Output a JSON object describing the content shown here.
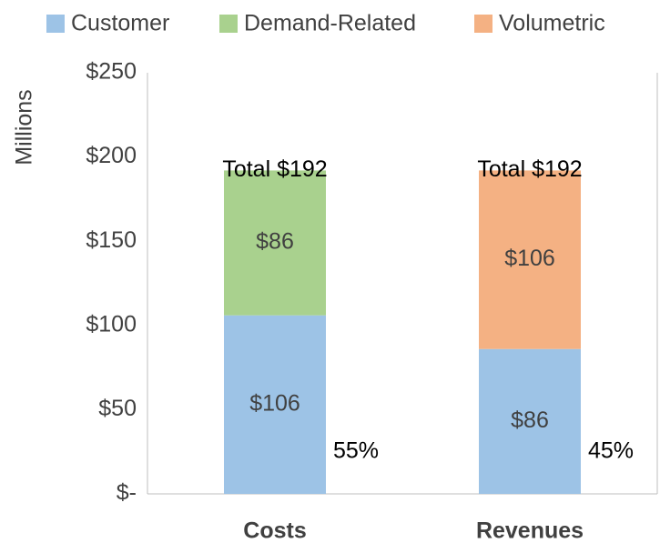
{
  "chart_data": {
    "type": "stacked_bar",
    "y_axis_label": "Millions",
    "categories": [
      "Costs",
      "Revenues"
    ],
    "series": [
      {
        "name": "Customer",
        "color": "#9dc3e6",
        "values": [
          106,
          86
        ],
        "value_labels": [
          "$106",
          "$86"
        ]
      },
      {
        "name": "Demand-Related",
        "color": "#a9d18e",
        "values": [
          86,
          null
        ],
        "value_labels": [
          "$86",
          null
        ]
      },
      {
        "name": "Volumetric",
        "color": "#f4b183",
        "values": [
          null,
          106
        ],
        "value_labels": [
          null,
          "$106"
        ]
      }
    ],
    "totals": [
      192,
      192
    ],
    "total_labels": [
      "Total $192",
      "Total $192"
    ],
    "share_labels": [
      "55%",
      "45%"
    ],
    "ylim": [
      0,
      250
    ],
    "yticks": [
      {
        "value": 0,
        "label": "$-"
      },
      {
        "value": 50,
        "label": "$50"
      },
      {
        "value": 100,
        "label": "$100"
      },
      {
        "value": 150,
        "label": "$150"
      },
      {
        "value": 200,
        "label": "$200"
      },
      {
        "value": 250,
        "label": "$250"
      }
    ],
    "grid": false,
    "legend": "top"
  }
}
